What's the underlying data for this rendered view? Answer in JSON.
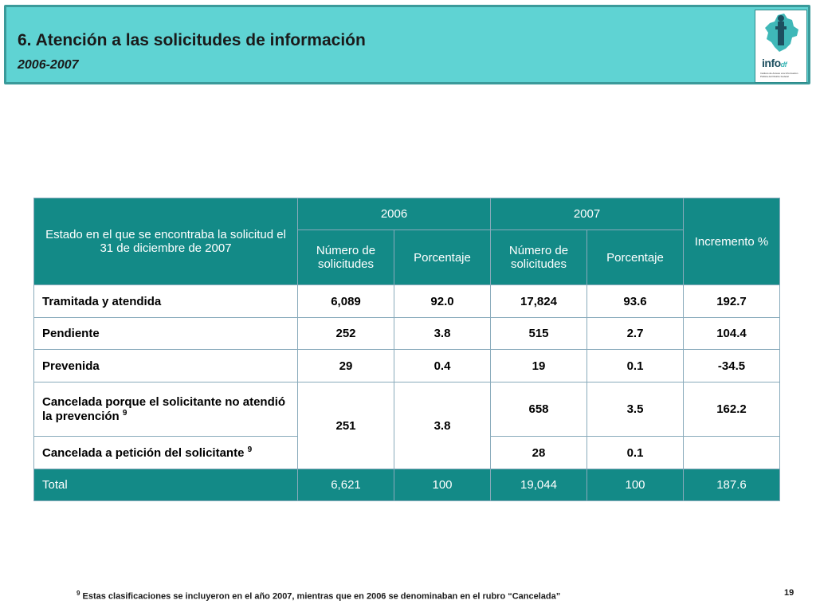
{
  "header": {
    "title": "6. Atención a las solicitudes de información",
    "subtitle": "2006-2007"
  },
  "logo": {
    "word_main": "info",
    "word_suffix": "df",
    "small_text": "Instituto de Acceso a la Información Pública del Distrito Federal",
    "colors": {
      "teal": "#3fb8b8",
      "navy": "#1d4f5f"
    }
  },
  "table": {
    "col_status": "Estado en el que se encontraba la solicitud el 31 de diciembre de 2007",
    "year_2006": "2006",
    "year_2007": "2007",
    "col_increment": "Incremento %",
    "col_num": "Número de solicitudes",
    "col_pct": "Porcentaje",
    "rows": {
      "tramitada": {
        "label": "Tramitada y atendida",
        "n2006": "6,089",
        "p2006": "92.0",
        "n2007": "17,824",
        "p2007": "93.6",
        "inc": "192.7"
      },
      "pendiente": {
        "label": "Pendiente",
        "n2006": "252",
        "p2006": "3.8",
        "n2007": "515",
        "p2007": "2.7",
        "inc": "104.4"
      },
      "prevenida": {
        "label": "Prevenida",
        "n2006": "29",
        "p2006": "0.4",
        "n2007": "19",
        "p2007": "0.1",
        "inc": "-34.5"
      },
      "cancelada_prevencion": {
        "label": "Cancelada porque el solicitante no atendió la prevención",
        "sup": "9",
        "n2006": "251",
        "p2006": "3.8",
        "n2007": "658",
        "p2007": "3.5",
        "inc": "162.2"
      },
      "cancelada_peticion": {
        "label": "Cancelada a petición del solicitante",
        "sup": "9",
        "n2007": "28",
        "p2007": "0.1",
        "inc": ""
      }
    },
    "total": {
      "label": "Total",
      "n2006": "6,621",
      "p2006": "100",
      "n2007": "19,044",
      "p2007": "100",
      "inc": "187.6"
    },
    "colors": {
      "header_bg": "#138a87"
    }
  },
  "footnote": {
    "marker": "9",
    "text": "Estas clasificaciones se incluyeron en el  año 2007, mientras que en 2006 se denominaban en el rubro “Cancelada”"
  },
  "page_number": "19"
}
